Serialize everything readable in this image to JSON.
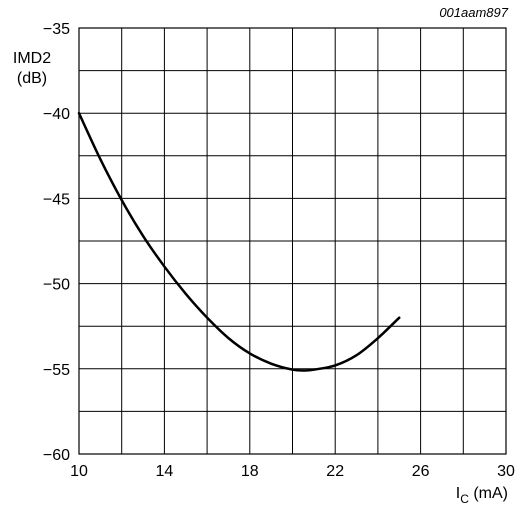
{
  "chart_data": {
    "type": "line",
    "reference_code": "001aam897",
    "ylabel_line1": "IMD2",
    "ylabel_line2": "(dB)",
    "xlabel_main": "I",
    "xlabel_sub": "C",
    "xlabel_unit": " (mA)",
    "xlim": [
      10,
      30
    ],
    "ylim": [
      -60,
      -35
    ],
    "x_ticks": [
      10,
      14,
      18,
      22,
      26,
      30
    ],
    "x_tick_labels": [
      "10",
      "14",
      "18",
      "22",
      "26",
      "30"
    ],
    "y_ticks": [
      -35,
      -40,
      -45,
      -50,
      -55,
      -60
    ],
    "y_tick_labels": [
      "−35",
      "−40",
      "−45",
      "−50",
      "−55",
      "−60"
    ],
    "x_grid_step": 2,
    "y_grid_step": 2.5,
    "grid": true,
    "series": [
      {
        "x": [
          10,
          11,
          12,
          13,
          14,
          15,
          16,
          17,
          18,
          19,
          20,
          20.6,
          21,
          22,
          23,
          24,
          25
        ],
        "y": [
          -40,
          -42.7,
          -45.1,
          -47.2,
          -49.0,
          -50.6,
          -52.0,
          -53.2,
          -54.1,
          -54.7,
          -55.05,
          -55.1,
          -55.05,
          -54.8,
          -54.2,
          -53.2,
          -52.0
        ]
      }
    ]
  }
}
